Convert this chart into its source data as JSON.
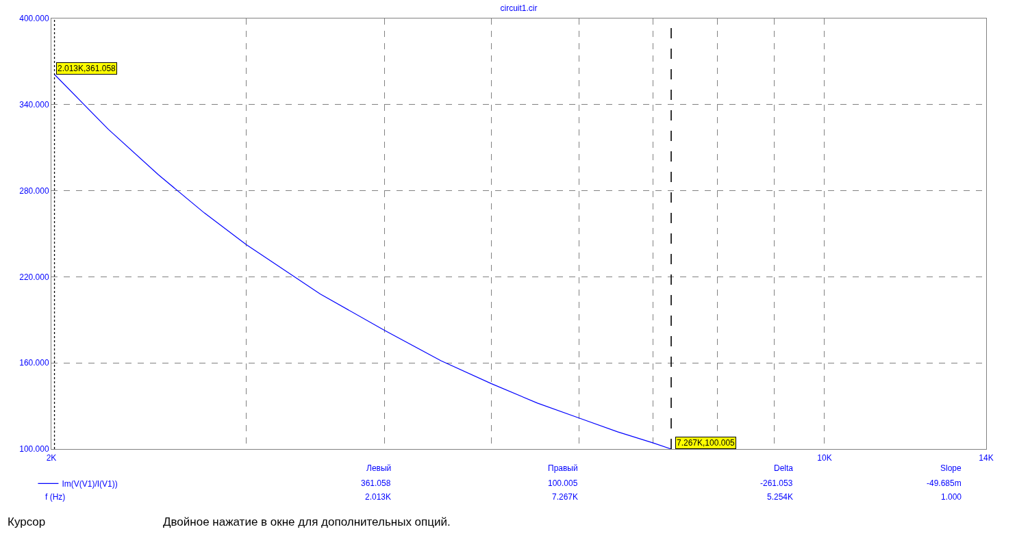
{
  "chart_data": {
    "type": "line",
    "title": "circuit1.cir",
    "xlabel": "f (Hz)",
    "log": "x",
    "x": [
      2013,
      2250,
      2500,
      2750,
      3000,
      3500,
      4000,
      4500,
      5000,
      5500,
      6000,
      6500,
      7000,
      7267
    ],
    "series": [
      {
        "name": "Im(V(V1)/I(V1))",
        "color": "#0000ff",
        "values": [
          361,
          323,
          291,
          264.5,
          242.5,
          208,
          182.8,
          161.5,
          145.5,
          132,
          121.6,
          112,
          104.2,
          100
        ]
      }
    ],
    "xlim": [
      2000,
      14000
    ],
    "xticks": [
      {
        "value": 2000,
        "label": "2K"
      },
      {
        "value": 3000,
        "label": null
      },
      {
        "value": 4000,
        "label": null
      },
      {
        "value": 5000,
        "label": null
      },
      {
        "value": 6000,
        "label": null
      },
      {
        "value": 7000,
        "label": null
      },
      {
        "value": 8000,
        "label": null
      },
      {
        "value": 9000,
        "label": null
      },
      {
        "value": 10000,
        "label": "10K"
      },
      {
        "value": 14000,
        "label": "14K"
      }
    ],
    "ylim": [
      100,
      400
    ],
    "yticks": [
      {
        "value": 100,
        "label": "100.000"
      },
      {
        "value": 160,
        "label": "160.000"
      },
      {
        "value": 220,
        "label": "220.000"
      },
      {
        "value": 280,
        "label": "280.000"
      },
      {
        "value": 340,
        "label": "340.000"
      },
      {
        "value": 400,
        "label": "400.000"
      }
    ],
    "grid": true,
    "legend": "bottom left",
    "marker": "none",
    "line_style": "solid",
    "ref_lines": [
      {
        "axis": "x",
        "value": 2013,
        "label": null,
        "color": "#000000",
        "line_style": "dotted"
      },
      {
        "axis": "x",
        "value": 7267,
        "label": null,
        "color": "#000000",
        "line_style": "dashed"
      }
    ],
    "annotations": [
      {
        "text": "2.013K,361.058",
        "x": 2013,
        "y": 361.058
      },
      {
        "text": "7.267K,100.005",
        "x": 7267,
        "y": 100.005
      },
      "Левый",
      "Правый",
      "Delta",
      "Slope",
      "361.058",
      "100.005",
      "-261.053",
      "-49.685m",
      "2.013K",
      "7.267K",
      "5.254K",
      "1.000",
      "Курсор",
      "Двойное нажатие в окне для дополнительных опций."
    ]
  }
}
